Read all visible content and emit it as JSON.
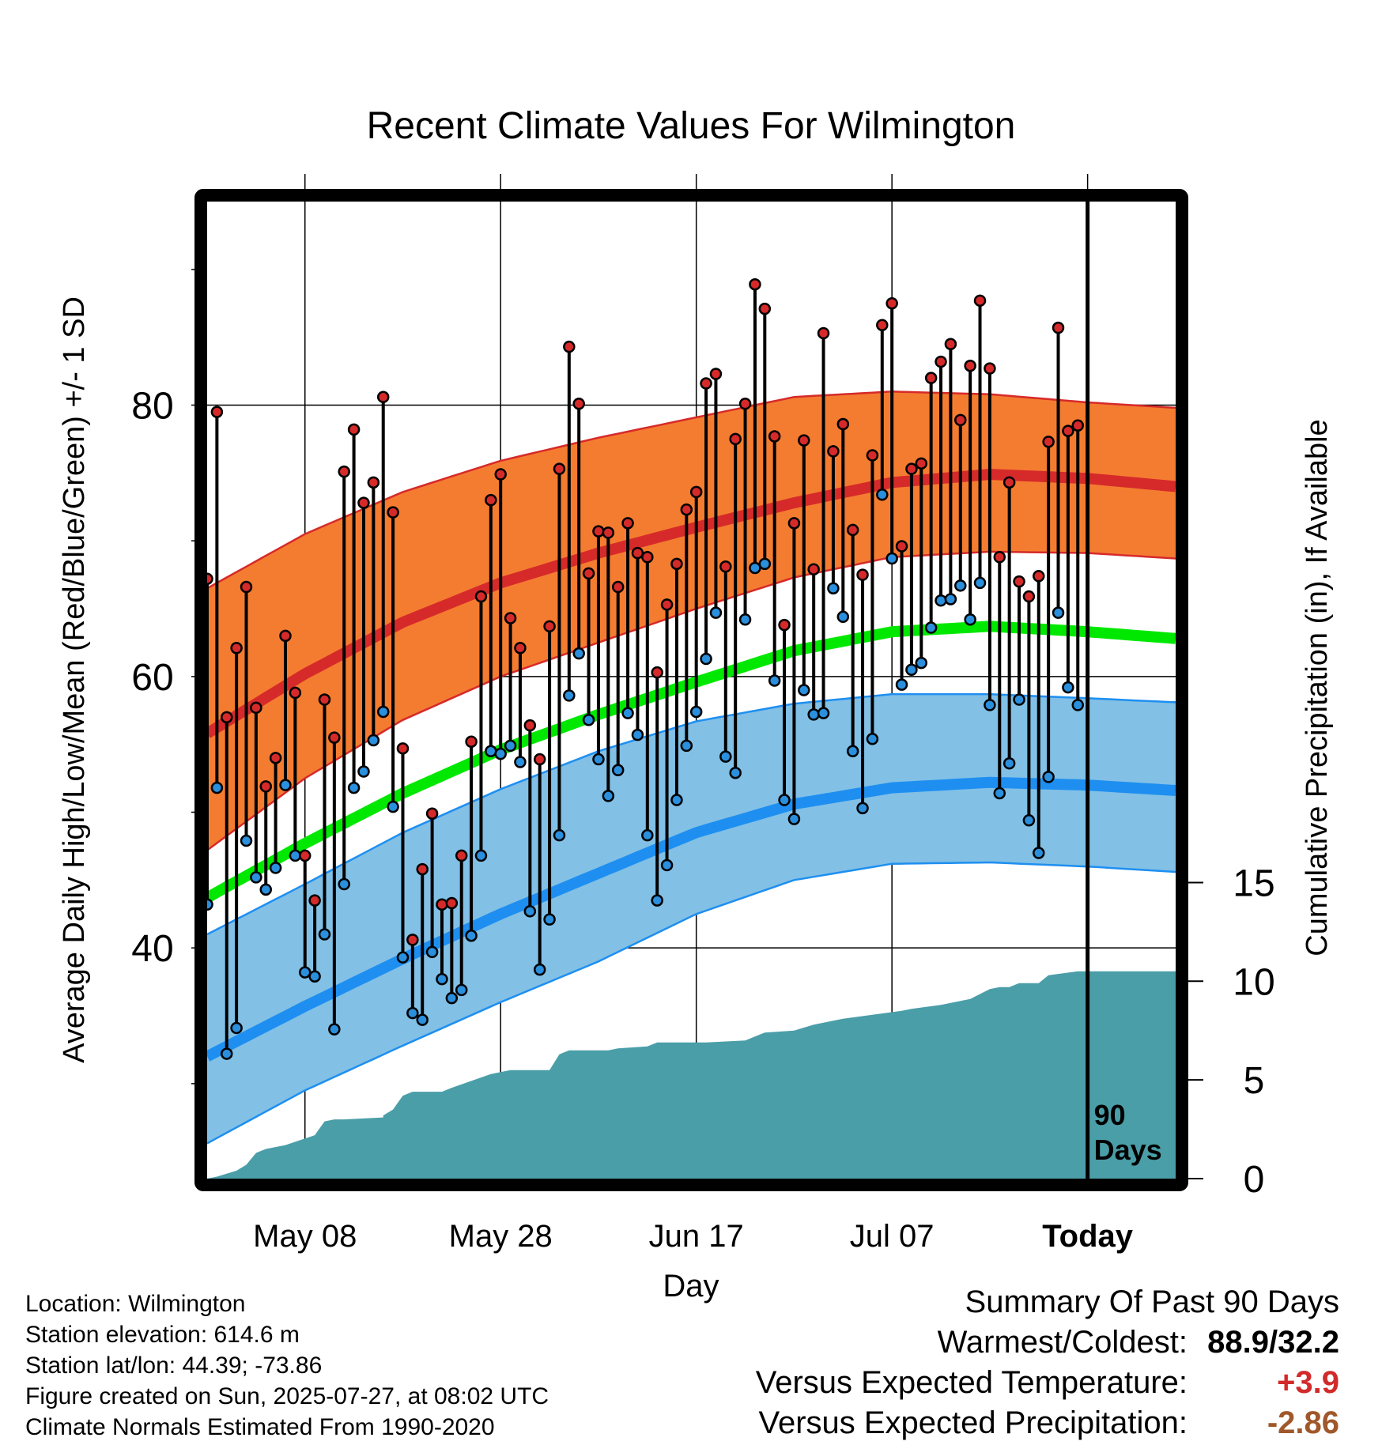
{
  "chart_data": {
    "type": "line",
    "title": "Recent Climate Values For Wilmington",
    "xlabel": "Day",
    "ylabel_left": "Average Daily High/Low/Mean (Red/Blue/Green) +/- 1 SD",
    "ylabel_right": "Cumulative Precipitation (in), If Available",
    "x_ticks": [
      "May 08",
      "May 28",
      "Jun 17",
      "Jul 07",
      "Today"
    ],
    "y_ticks_left": [
      "40",
      "60",
      "80"
    ],
    "y_ticks_right": [
      "0",
      "5",
      "10",
      "15"
    ],
    "ylim_left": [
      23,
      95
    ],
    "ylim_right": [
      0,
      49.5
    ],
    "xlim_days": [
      -90,
      9
    ],
    "today_marker": "90\nDays",
    "normals": {
      "days": [
        -90,
        -80,
        -70,
        -60,
        -50,
        -40,
        -30,
        -20,
        -10,
        0,
        9
      ],
      "high_mean": [
        55.8,
        60.2,
        64.0,
        66.9,
        69.1,
        71.0,
        72.8,
        74.3,
        74.9,
        74.6,
        74.0
      ],
      "high_plus_sd": [
        66.5,
        70.5,
        73.6,
        75.9,
        77.6,
        79.1,
        80.6,
        81.0,
        80.8,
        80.2,
        79.8
      ],
      "high_minus_sd": [
        47.2,
        52.5,
        56.8,
        60.0,
        62.5,
        65.0,
        67.3,
        68.8,
        69.2,
        69.1,
        68.7
      ],
      "low_mean": [
        32.0,
        35.7,
        39.2,
        42.5,
        45.5,
        48.5,
        50.6,
        51.8,
        52.2,
        52.0,
        51.6
      ],
      "low_plus_sd": [
        41.0,
        44.7,
        48.5,
        51.7,
        54.5,
        56.7,
        58.0,
        58.7,
        58.7,
        58.4,
        58.1
      ],
      "low_minus_sd": [
        25.6,
        29.5,
        32.8,
        36.0,
        39.0,
        42.5,
        45.0,
        46.2,
        46.3,
        46.0,
        45.6
      ],
      "mean": [
        43.7,
        47.7,
        51.4,
        54.6,
        57.2,
        59.6,
        61.9,
        63.3,
        63.7,
        63.3,
        62.8
      ]
    },
    "daily_high": [
      67.2,
      79.5,
      57.0,
      62.1,
      66.6,
      57.7,
      51.9,
      54.0,
      63.0,
      58.8,
      46.8,
      43.5,
      58.3,
      55.5,
      75.1,
      78.2,
      72.8,
      74.3,
      80.6,
      72.1,
      54.7,
      40.6,
      45.8,
      49.9,
      43.2,
      43.3,
      46.8,
      55.2,
      65.9,
      73.0,
      74.9,
      64.3,
      62.1,
      56.4,
      53.9,
      63.7,
      75.3,
      84.3,
      80.1,
      67.6,
      70.7,
      70.6,
      66.6,
      71.3,
      69.1,
      68.8,
      60.3,
      65.3,
      68.3,
      72.3,
      73.6,
      81.6,
      82.3,
      68.1,
      77.5,
      80.1,
      88.9,
      87.1,
      77.7,
      63.8,
      71.3,
      77.4,
      67.9,
      85.3,
      76.6,
      78.6,
      70.8,
      67.5,
      76.3,
      85.9,
      87.5,
      69.6,
      75.3,
      75.7,
      82.0,
      83.2,
      84.5,
      78.9,
      82.9,
      87.7,
      82.7,
      68.8,
      74.3,
      67.0,
      65.9,
      67.4,
      77.3,
      85.7,
      78.1,
      78.5
    ],
    "daily_low": [
      43.2,
      51.8,
      32.2,
      34.1,
      47.9,
      45.2,
      44.3,
      45.9,
      52.0,
      46.8,
      38.2,
      37.9,
      41.0,
      34.0,
      44.7,
      51.8,
      53.0,
      55.3,
      57.4,
      50.4,
      39.3,
      35.2,
      34.7,
      39.7,
      37.7,
      36.3,
      36.9,
      40.9,
      46.8,
      54.5,
      54.3,
      54.9,
      53.7,
      42.7,
      38.4,
      42.1,
      48.3,
      58.6,
      61.7,
      56.8,
      53.9,
      51.2,
      53.1,
      57.3,
      55.7,
      48.3,
      43.5,
      46.1,
      50.9,
      54.9,
      57.4,
      61.3,
      64.7,
      54.1,
      52.9,
      64.2,
      68.0,
      68.3,
      59.7,
      50.9,
      49.5,
      59.0,
      57.2,
      57.3,
      66.5,
      64.4,
      54.5,
      50.3,
      55.4,
      73.4,
      68.7,
      59.4,
      60.5,
      61.0,
      63.6,
      65.6,
      65.7,
      66.7,
      64.2,
      66.9,
      57.9,
      51.4,
      53.6,
      58.3,
      49.4,
      47.0,
      52.6,
      64.7,
      59.2,
      57.9
    ],
    "cumulative_precip": {
      "days": [
        -90,
        -89,
        -87,
        -86,
        -85,
        -84,
        -82,
        -79,
        -78,
        -77,
        -76,
        -72,
        -72,
        -71,
        -70,
        -69,
        -66,
        -65,
        -61,
        -60,
        -59,
        -55,
        -54,
        -53,
        -49,
        -48,
        -45,
        -44,
        -40,
        -39,
        -35,
        -34,
        -33,
        -30,
        -28,
        -26,
        -25,
        -22,
        -19,
        -18,
        -15,
        -14,
        -12,
        -10,
        -9,
        -8,
        -7,
        -5,
        -4,
        -1,
        0,
        9
      ],
      "values": [
        0.0,
        0.1,
        0.4,
        0.7,
        1.3,
        1.5,
        1.7,
        2.2,
        2.9,
        3.0,
        3.0,
        3.1,
        3.2,
        3.5,
        4.2,
        4.4,
        4.4,
        4.6,
        5.3,
        5.4,
        5.5,
        5.5,
        6.3,
        6.5,
        6.5,
        6.6,
        6.7,
        6.9,
        6.9,
        6.9,
        7.0,
        7.2,
        7.4,
        7.5,
        7.8,
        8.0,
        8.1,
        8.3,
        8.5,
        8.6,
        8.8,
        8.9,
        9.1,
        9.6,
        9.7,
        9.7,
        9.9,
        9.9,
        10.3,
        10.5,
        10.5,
        10.5
      ]
    }
  },
  "footer": {
    "location": "Location: Wilmington",
    "elevation": "Station elevation: 614.6 m",
    "latlon": "Station lat/lon: 44.39; -73.86",
    "created": "Figure created on Sun, 2025-07-27, at 08:02 UTC",
    "normals": "Climate Normals Estimated From 1990-2020"
  },
  "summary": {
    "heading": "Summary Of Past 90 Days",
    "warm_cold_label": "Warmest/Coldest:",
    "warm_cold_value": "88.9/32.2",
    "temp_label": "Versus Expected Temperature:",
    "temp_value": "+3.9",
    "temp_color": "#d22a2a",
    "precip_label": "Versus Expected Precipitation:",
    "precip_value": "-2.86",
    "precip_color": "#a0582a"
  },
  "colors": {
    "high_band": "#f47c30",
    "high_line": "#d62a2a",
    "low_band": "#82c0e6",
    "low_line": "#1e8ff0",
    "mean_line": "#00e800",
    "precip_fill": "#4a9ea8",
    "high_dot": "#d62a2a",
    "low_dot": "#2a8fdd"
  }
}
